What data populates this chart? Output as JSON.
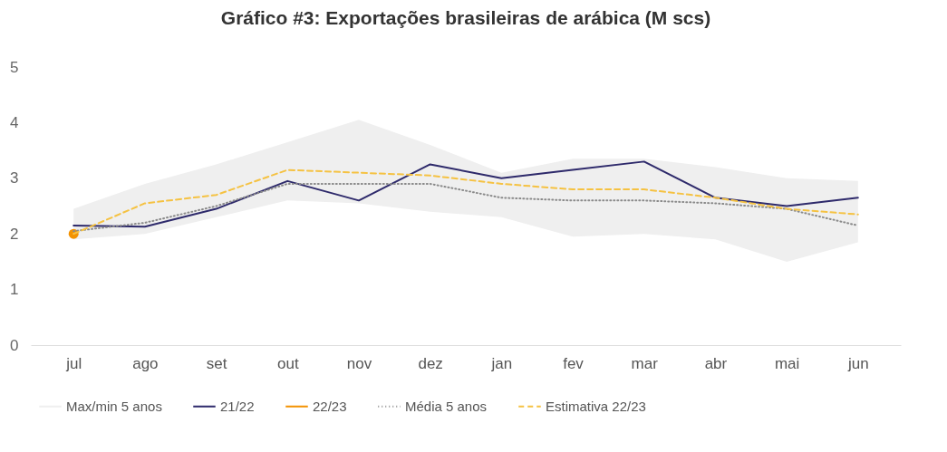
{
  "chart_data": {
    "type": "line",
    "title": "Gráfico #3: Exportações brasileiras de arábica (M scs)",
    "categories": [
      "jul",
      "ago",
      "set",
      "out",
      "nov",
      "dez",
      "jan",
      "fev",
      "mar",
      "abr",
      "mai",
      "jun"
    ],
    "series": [
      {
        "name": "Max/min 5 anos",
        "type": "area",
        "color": "#efefef",
        "lower": [
          1.9,
          2.0,
          2.3,
          2.6,
          2.55,
          2.4,
          2.3,
          1.95,
          2.0,
          1.9,
          1.5,
          1.85
        ],
        "upper": [
          2.45,
          2.9,
          3.25,
          3.65,
          4.05,
          3.6,
          3.1,
          3.35,
          3.35,
          3.2,
          3.0,
          2.95
        ],
        "values": [
          null,
          null,
          null,
          null,
          null,
          null,
          null,
          null,
          null,
          null,
          null,
          null
        ]
      },
      {
        "name": "21/22",
        "color": "#2e2a6b",
        "line_style": "solid",
        "values": [
          2.15,
          2.13,
          2.45,
          2.95,
          2.6,
          3.25,
          3.0,
          3.15,
          3.3,
          2.65,
          2.5,
          2.65
        ]
      },
      {
        "name": "22/23",
        "color": "#f39200",
        "line_style": "solid",
        "marker": "circle",
        "values": [
          2.0,
          null,
          null,
          null,
          null,
          null,
          null,
          null,
          null,
          null,
          null,
          null
        ]
      },
      {
        "name": "Média 5 anos",
        "color": "#8a8a8a",
        "line_style": "dotted",
        "values": [
          2.05,
          2.2,
          2.5,
          2.9,
          2.9,
          2.9,
          2.65,
          2.6,
          2.6,
          2.55,
          2.45,
          2.15
        ]
      },
      {
        "name": "Estimativa 22/23",
        "color": "#f5c242",
        "line_style": "dashed",
        "values": [
          2.0,
          2.55,
          2.7,
          3.15,
          3.1,
          3.05,
          2.9,
          2.8,
          2.8,
          2.65,
          2.45,
          2.35
        ]
      }
    ],
    "ylim": [
      0,
      5
    ],
    "yticks": [
      0,
      1,
      2,
      3,
      4,
      5
    ],
    "grid": false,
    "legend": "bottom"
  }
}
